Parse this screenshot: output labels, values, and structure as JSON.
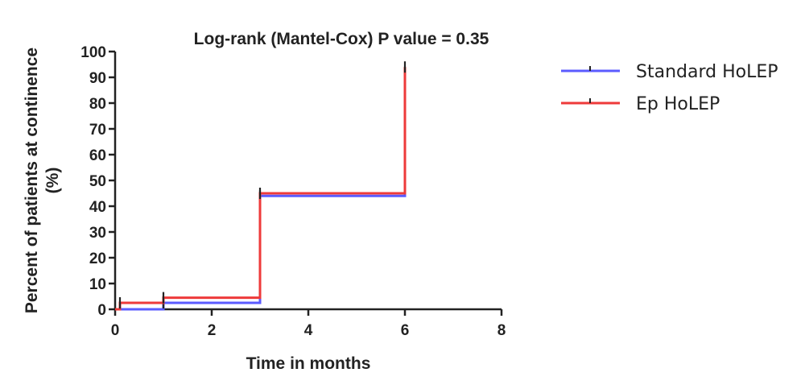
{
  "chart_data": {
    "type": "line",
    "subtype": "step",
    "title": "Log-rank (Mantel-Cox) P value = 0.35",
    "xlabel": "Time in months",
    "ylabel_line1": "Percent of patients at continence",
    "ylabel_line2": "(%)",
    "xlim": [
      0,
      8
    ],
    "ylim": [
      0,
      100
    ],
    "xticks": [
      0,
      2,
      4,
      6,
      8
    ],
    "yticks": [
      0,
      10,
      20,
      30,
      40,
      50,
      60,
      70,
      80,
      90,
      100
    ],
    "grid": false,
    "legend_position": "right",
    "series": [
      {
        "name": "Standard HoLEP",
        "color": "#5b5bff",
        "steps": [
          {
            "x": 0,
            "y": 0
          },
          {
            "x": 1,
            "y": 2.5
          },
          {
            "x": 3,
            "y": 44
          },
          {
            "x": 6,
            "y": 92
          }
        ],
        "censor_marks": [
          {
            "x": 1,
            "y": 2.5
          },
          {
            "x": 3,
            "y": 44
          },
          {
            "x": 6,
            "y": 92
          }
        ]
      },
      {
        "name": "Ep HoLEP",
        "color": "#ee3a3a",
        "steps": [
          {
            "x": 0,
            "y": 0
          },
          {
            "x": 0.1,
            "y": 2.5
          },
          {
            "x": 1,
            "y": 4.5
          },
          {
            "x": 3,
            "y": 45
          },
          {
            "x": 6,
            "y": 94
          }
        ],
        "censor_marks": [
          {
            "x": 0.1,
            "y": 2.5
          },
          {
            "x": 1,
            "y": 4.5
          },
          {
            "x": 3,
            "y": 45
          },
          {
            "x": 6,
            "y": 94
          }
        ]
      }
    ]
  }
}
